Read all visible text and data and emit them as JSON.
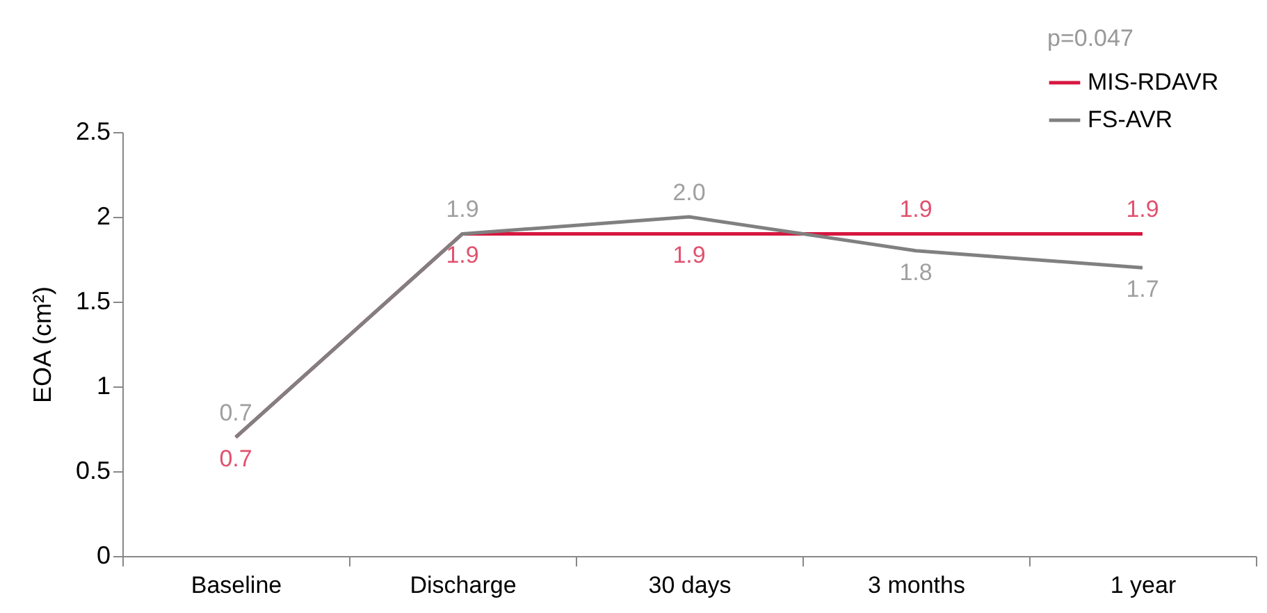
{
  "chart_data": {
    "type": "line",
    "ylabel": "EOA (cm²)",
    "categories": [
      "Baseline",
      "Discharge",
      "30 days",
      "3 months",
      "1 year"
    ],
    "series": [
      {
        "name": "MIS-RDAVR",
        "color": "#d6173f",
        "values": [
          0.7,
          1.9,
          1.9,
          1.9,
          1.9
        ],
        "value_labels": [
          "0.7",
          "1.9",
          "1.9",
          "1.9",
          "1.9"
        ]
      },
      {
        "name": "FS-AVR",
        "color": "#808080",
        "values": [
          0.7,
          1.9,
          2.0,
          1.8,
          1.7
        ],
        "value_labels": [
          "0.7",
          "1.9",
          "2.0",
          "1.8",
          "1.7"
        ]
      }
    ],
    "ylim": [
      0,
      2.5
    ],
    "yticks": [
      0,
      0.5,
      1,
      1.5,
      2,
      2.5
    ],
    "annotations": [
      "p=0.047"
    ],
    "legend": "top right",
    "grid": false,
    "marker": "none"
  }
}
